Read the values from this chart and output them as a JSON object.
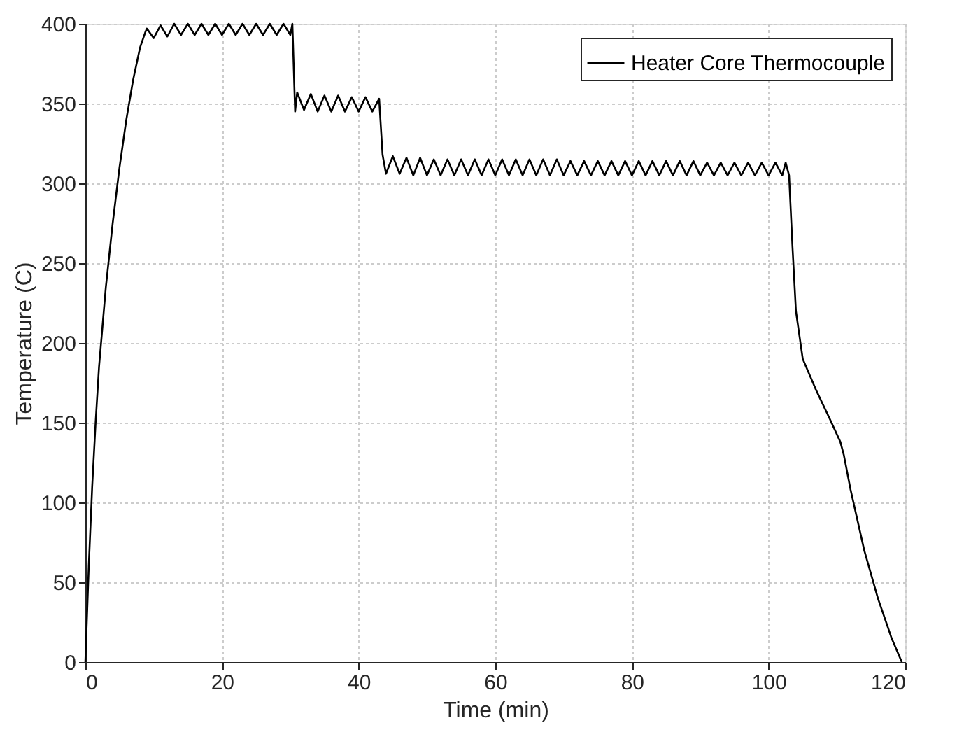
{
  "chart_data": {
    "type": "line",
    "xlabel": "Time (min)",
    "ylabel": "Temperature (C)",
    "xlim": [
      0,
      120
    ],
    "ylim": [
      0,
      400
    ],
    "xticks": [
      0,
      20,
      40,
      60,
      80,
      100,
      120
    ],
    "yticks": [
      0,
      50,
      100,
      150,
      200,
      250,
      300,
      350,
      400
    ],
    "grid": true,
    "legend": "top right",
    "line_style": "solid",
    "marker": "none",
    "series": [
      {
        "name": "Heater Core Thermocouple",
        "color": "#000000",
        "x": [
          0,
          0.5,
          1,
          1.5,
          2,
          3,
          4,
          5,
          6,
          7,
          8,
          8.8,
          9,
          10,
          11,
          12,
          13,
          14,
          15,
          16,
          17,
          18,
          19,
          20,
          21,
          22,
          23,
          24,
          25,
          26,
          27,
          28,
          29,
          30,
          30.3,
          30.7,
          31,
          32,
          33,
          34,
          35,
          36,
          37,
          38,
          39,
          40,
          41,
          42,
          43,
          43.5,
          44,
          45,
          46,
          47,
          48,
          49,
          50,
          51,
          52,
          53,
          54,
          55,
          56,
          57,
          58,
          59,
          60,
          61,
          62,
          63,
          64,
          65,
          66,
          67,
          68,
          69,
          70,
          71,
          72,
          73,
          74,
          75,
          76,
          77,
          78,
          79,
          80,
          81,
          82,
          83,
          84,
          85,
          86,
          87,
          88,
          89,
          90,
          91,
          92,
          93,
          94,
          95,
          96,
          97,
          98,
          99,
          100,
          101,
          102,
          102.5,
          103,
          103.5,
          104,
          105,
          107,
          109,
          110.5,
          111,
          112,
          114,
          116,
          118,
          119.5
        ],
        "values": [
          0,
          60,
          110,
          150,
          185,
          235,
          275,
          310,
          340,
          365,
          385,
          395,
          397,
          391,
          399,
          392,
          400,
          393,
          400,
          393,
          400,
          393,
          400,
          393,
          400,
          393,
          400,
          393,
          400,
          393,
          400,
          393,
          400,
          393,
          400,
          345,
          357,
          346,
          356,
          345,
          355,
          345,
          355,
          345,
          354,
          345,
          354,
          345,
          353,
          318,
          306,
          317,
          306,
          316,
          305,
          316,
          305,
          315,
          305,
          315,
          305,
          315,
          305,
          315,
          305,
          315,
          305,
          315,
          305,
          315,
          305,
          315,
          305,
          315,
          305,
          315,
          305,
          314,
          305,
          314,
          305,
          314,
          305,
          314,
          305,
          314,
          305,
          314,
          305,
          314,
          305,
          314,
          305,
          314,
          305,
          314,
          305,
          313,
          305,
          313,
          305,
          313,
          305,
          313,
          305,
          313,
          305,
          313,
          305,
          313,
          305,
          260,
          220,
          190,
          170,
          152,
          138,
          130,
          108,
          70,
          40,
          15,
          0
        ]
      }
    ]
  }
}
